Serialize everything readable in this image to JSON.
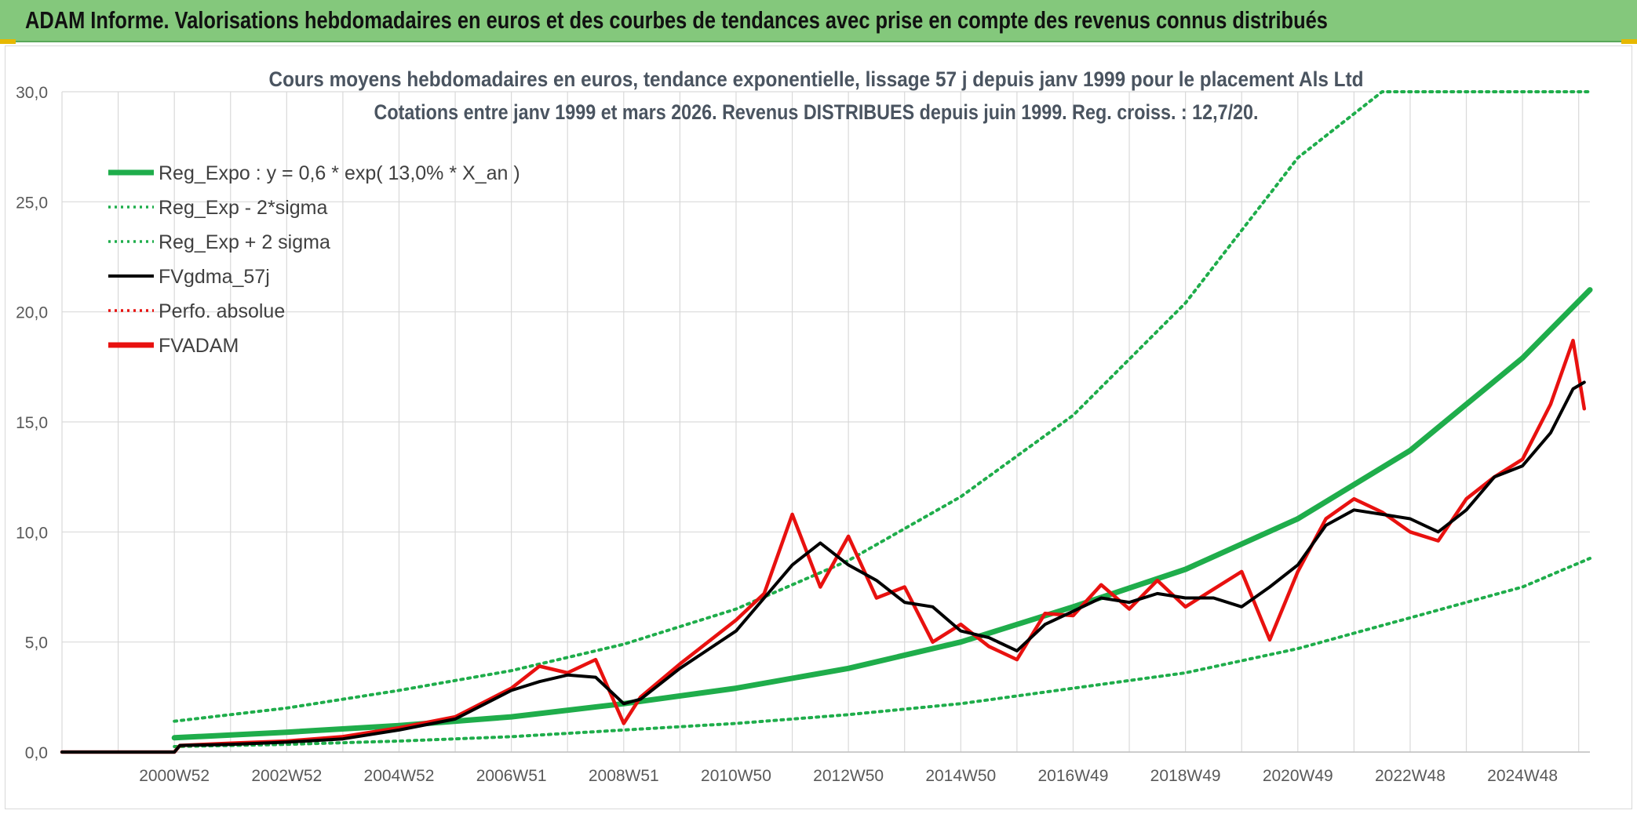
{
  "banner": {
    "title": "ADAM Informe. Valorisations hebdomadaires en euros et des courbes de tendances avec prise en compte des revenus connus distribués"
  },
  "colors": {
    "banner_bg": "#84c87c",
    "trend_green": "#1fad4b",
    "fv_black": "#000000",
    "fv_red": "#e8110f",
    "grid": "#d9d9d9"
  },
  "chart_data": {
    "type": "line",
    "title": "Cours moyens hebdomadaires en euros, tendance exponentielle, lissage 57 j depuis janv 1999 pour le placement Als Ltd",
    "subtitle": "Cotations entre janv 1999 et mars 2026. Revenus DISTRIBUES depuis juin 1999. Reg. croiss. : 12,7/20.",
    "xlabel": "",
    "ylabel": "",
    "ylim": [
      0,
      30
    ],
    "yticks": [
      "0,0",
      "5,0",
      "10,0",
      "15,0",
      "20,0",
      "25,0",
      "30,0"
    ],
    "x_range": [
      1999.0,
      2026.2
    ],
    "xtick_labels": [
      "2000W52",
      "2002W52",
      "2004W52",
      "2006W51",
      "2008W51",
      "2010W50",
      "2012W50",
      "2014W50",
      "2016W49",
      "2018W49",
      "2020W49",
      "2022W48",
      "2024W48"
    ],
    "xtick_positions": [
      2001.0,
      2003.0,
      2005.0,
      2007.0,
      2009.0,
      2011.0,
      2013.0,
      2015.0,
      2017.0,
      2019.0,
      2021.0,
      2023.0,
      2025.0
    ],
    "grid": true,
    "legend_position": "top-left",
    "legend": [
      {
        "label": "Reg_Expo : y = 0,6 * exp( 13,0% *  X_an )",
        "style": "solid-thick",
        "color": "#1fad4b"
      },
      {
        "label": "Reg_Exp - 2*sigma",
        "style": "dotted",
        "color": "#1fad4b"
      },
      {
        "label": "Reg_Exp + 2 sigma",
        "style": "dotted",
        "color": "#1fad4b"
      },
      {
        "label": "FVgdma_57j",
        "style": "solid",
        "color": "#000000"
      },
      {
        "label": "Perfo. absolue",
        "style": "dotted",
        "color": "#e8110f"
      },
      {
        "label": "FVADAM",
        "style": "solid-thick",
        "color": "#e8110f"
      }
    ],
    "series": [
      {
        "name": "Reg_Expo : y = 0,6 * exp( 13,0% *  X_an )",
        "x": [
          2001.0,
          2003.0,
          2005.0,
          2007.0,
          2009.0,
          2011.0,
          2013.0,
          2015.0,
          2017.0,
          2019.0,
          2021.0,
          2023.0,
          2025.0,
          2026.2
        ],
        "values": [
          0.65,
          0.9,
          1.2,
          1.6,
          2.2,
          2.9,
          3.8,
          5.0,
          6.6,
          8.3,
          10.6,
          13.7,
          17.9,
          21.0
        ]
      },
      {
        "name": "Reg_Exp - 2*sigma",
        "x": [
          2001.0,
          2003.0,
          2005.0,
          2007.0,
          2009.0,
          2011.0,
          2013.0,
          2015.0,
          2017.0,
          2019.0,
          2021.0,
          2023.0,
          2025.0,
          2026.2
        ],
        "values": [
          0.25,
          0.35,
          0.5,
          0.7,
          1.0,
          1.3,
          1.7,
          2.2,
          2.9,
          3.6,
          4.7,
          6.1,
          7.5,
          8.8
        ]
      },
      {
        "name": "Reg_Exp + 2 sigma",
        "x": [
          2001.0,
          2003.0,
          2005.0,
          2007.0,
          2009.0,
          2011.0,
          2013.0,
          2015.0,
          2017.0,
          2019.0,
          2021.0,
          2022.5,
          2023.0,
          2026.2
        ],
        "values": [
          1.4,
          2.0,
          2.8,
          3.7,
          4.9,
          6.5,
          8.7,
          11.6,
          15.3,
          20.4,
          27.0,
          30.0,
          30.0,
          30.0
        ]
      },
      {
        "name": "FVgdma_57j",
        "x": [
          1999.0,
          2001.0,
          2001.1,
          2002.0,
          2003.0,
          2004.0,
          2005.0,
          2006.0,
          2007.0,
          2007.5,
          2008.0,
          2008.5,
          2009.0,
          2009.3,
          2010.0,
          2011.0,
          2011.5,
          2012.0,
          2012.5,
          2013.0,
          2013.5,
          2014.0,
          2014.5,
          2015.0,
          2015.5,
          2016.0,
          2016.5,
          2017.0,
          2017.5,
          2018.0,
          2018.5,
          2019.0,
          2019.5,
          2020.0,
          2020.5,
          2021.0,
          2021.5,
          2022.0,
          2022.5,
          2023.0,
          2023.5,
          2024.0,
          2024.5,
          2025.0,
          2025.5,
          2025.9,
          2026.1
        ],
        "values": [
          0.0,
          0.0,
          0.3,
          0.35,
          0.45,
          0.6,
          1.0,
          1.5,
          2.8,
          3.2,
          3.5,
          3.4,
          2.2,
          2.4,
          3.8,
          5.5,
          7.0,
          8.5,
          9.5,
          8.5,
          7.8,
          6.8,
          6.6,
          5.5,
          5.2,
          4.6,
          5.8,
          6.4,
          7.0,
          6.8,
          7.2,
          7.0,
          7.0,
          6.6,
          7.5,
          8.5,
          10.3,
          11.0,
          10.8,
          10.6,
          10.0,
          11.0,
          12.5,
          13.0,
          14.5,
          16.5,
          16.8
        ]
      },
      {
        "name": "FVADAM",
        "x": [
          1999.0,
          2001.0,
          2001.1,
          2002.0,
          2003.0,
          2004.0,
          2005.0,
          2006.0,
          2007.0,
          2007.5,
          2008.0,
          2008.5,
          2009.0,
          2009.3,
          2010.0,
          2011.0,
          2011.5,
          2012.0,
          2012.5,
          2013.0,
          2013.5,
          2014.0,
          2014.5,
          2015.0,
          2015.5,
          2016.0,
          2016.5,
          2017.0,
          2017.5,
          2018.0,
          2018.5,
          2019.0,
          2019.5,
          2020.0,
          2020.5,
          2021.0,
          2021.5,
          2022.0,
          2022.5,
          2023.0,
          2023.5,
          2024.0,
          2024.5,
          2025.0,
          2025.5,
          2025.9,
          2026.1
        ],
        "values": [
          0.0,
          0.0,
          0.3,
          0.4,
          0.5,
          0.7,
          1.1,
          1.6,
          2.9,
          3.9,
          3.6,
          4.2,
          1.3,
          2.5,
          4.0,
          6.0,
          7.2,
          10.8,
          7.5,
          9.8,
          7.0,
          7.5,
          5.0,
          5.8,
          4.8,
          4.2,
          6.3,
          6.2,
          7.6,
          6.5,
          7.8,
          6.6,
          7.4,
          8.2,
          5.1,
          8.2,
          10.6,
          11.5,
          10.9,
          10.0,
          9.6,
          11.5,
          12.5,
          13.3,
          15.8,
          18.7,
          15.6
        ]
      }
    ]
  }
}
